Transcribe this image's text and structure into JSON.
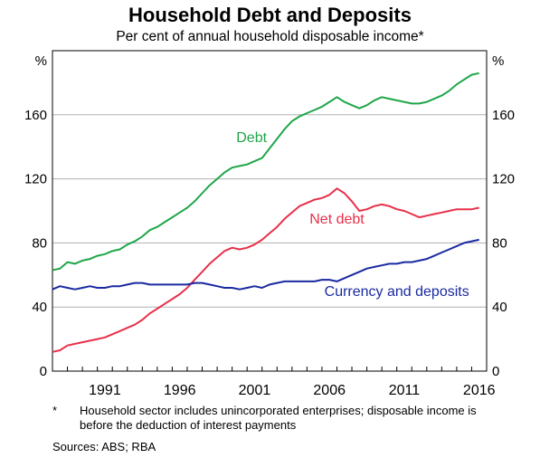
{
  "title": "Household Debt and Deposits",
  "subtitle": "Per cent of annual household disposable income*",
  "footnote_mark": "*",
  "footnote": "Household sector includes unincorporated enterprises; disposable income is before the deduction of interest payments",
  "sources": "Sources:   ABS; RBA",
  "chart_data": {
    "type": "line",
    "title": "Household Debt and Deposits",
    "subtitle": "Per cent of annual household disposable income*",
    "y_unit_left": "%",
    "y_unit_right": "%",
    "ylim": [
      0,
      200
    ],
    "yticks": [
      0,
      40,
      80,
      120,
      160
    ],
    "xlim": [
      1988.0,
      2017.0
    ],
    "xticks": [
      {
        "label": "1991",
        "value": 1991.5
      },
      {
        "label": "1996",
        "value": 1996.5
      },
      {
        "label": "2001",
        "value": 2001.5
      },
      {
        "label": "2006",
        "value": 2006.5
      },
      {
        "label": "2011",
        "value": 2011.5
      },
      {
        "label": "2016",
        "value": 2016.5
      }
    ],
    "grid": "horizontal",
    "series": [
      {
        "name": "Debt",
        "color": "#1fa64a",
        "points": [
          [
            1988.0,
            63
          ],
          [
            1988.5,
            64
          ],
          [
            1989.0,
            68
          ],
          [
            1989.5,
            67
          ],
          [
            1990.0,
            69
          ],
          [
            1990.5,
            70
          ],
          [
            1991.0,
            72
          ],
          [
            1991.5,
            73
          ],
          [
            1992.0,
            75
          ],
          [
            1992.5,
            76
          ],
          [
            1993.0,
            79
          ],
          [
            1993.5,
            81
          ],
          [
            1994.0,
            84
          ],
          [
            1994.5,
            88
          ],
          [
            1995.0,
            90
          ],
          [
            1995.5,
            93
          ],
          [
            1996.0,
            96
          ],
          [
            1996.5,
            99
          ],
          [
            1997.0,
            102
          ],
          [
            1997.5,
            106
          ],
          [
            1998.0,
            111
          ],
          [
            1998.5,
            116
          ],
          [
            1999.0,
            120
          ],
          [
            1999.5,
            124
          ],
          [
            2000.0,
            127
          ],
          [
            2000.5,
            128
          ],
          [
            2001.0,
            129
          ],
          [
            2001.5,
            131
          ],
          [
            2002.0,
            133
          ],
          [
            2002.5,
            139
          ],
          [
            2003.0,
            145
          ],
          [
            2003.5,
            151
          ],
          [
            2004.0,
            156
          ],
          [
            2004.5,
            159
          ],
          [
            2005.0,
            161
          ],
          [
            2005.5,
            163
          ],
          [
            2006.0,
            165
          ],
          [
            2006.5,
            168
          ],
          [
            2007.0,
            171
          ],
          [
            2007.5,
            168
          ],
          [
            2008.0,
            166
          ],
          [
            2008.5,
            164
          ],
          [
            2009.0,
            166
          ],
          [
            2009.5,
            169
          ],
          [
            2010.0,
            171
          ],
          [
            2010.5,
            170
          ],
          [
            2011.0,
            169
          ],
          [
            2011.5,
            168
          ],
          [
            2012.0,
            167
          ],
          [
            2012.5,
            167
          ],
          [
            2013.0,
            168
          ],
          [
            2013.5,
            170
          ],
          [
            2014.0,
            172
          ],
          [
            2014.5,
            175
          ],
          [
            2015.0,
            179
          ],
          [
            2015.5,
            182
          ],
          [
            2016.0,
            185
          ],
          [
            2016.5,
            186
          ]
        ]
      },
      {
        "name": "Net debt",
        "color": "#e8304a",
        "points": [
          [
            1988.0,
            12
          ],
          [
            1988.5,
            13
          ],
          [
            1989.0,
            16
          ],
          [
            1989.5,
            17
          ],
          [
            1990.0,
            18
          ],
          [
            1990.5,
            19
          ],
          [
            1991.0,
            20
          ],
          [
            1991.5,
            21
          ],
          [
            1992.0,
            23
          ],
          [
            1992.5,
            25
          ],
          [
            1993.0,
            27
          ],
          [
            1993.5,
            29
          ],
          [
            1994.0,
            32
          ],
          [
            1994.5,
            36
          ],
          [
            1995.0,
            39
          ],
          [
            1995.5,
            42
          ],
          [
            1996.0,
            45
          ],
          [
            1996.5,
            48
          ],
          [
            1997.0,
            52
          ],
          [
            1997.5,
            57
          ],
          [
            1998.0,
            62
          ],
          [
            1998.5,
            67
          ],
          [
            1999.0,
            71
          ],
          [
            1999.5,
            75
          ],
          [
            2000.0,
            77
          ],
          [
            2000.5,
            76
          ],
          [
            2001.0,
            77
          ],
          [
            2001.5,
            79
          ],
          [
            2002.0,
            82
          ],
          [
            2002.5,
            86
          ],
          [
            2003.0,
            90
          ],
          [
            2003.5,
            95
          ],
          [
            2004.0,
            99
          ],
          [
            2004.5,
            103
          ],
          [
            2005.0,
            105
          ],
          [
            2005.5,
            107
          ],
          [
            2006.0,
            108
          ],
          [
            2006.5,
            110
          ],
          [
            2007.0,
            114
          ],
          [
            2007.5,
            111
          ],
          [
            2008.0,
            106
          ],
          [
            2008.5,
            100
          ],
          [
            2009.0,
            101
          ],
          [
            2009.5,
            103
          ],
          [
            2010.0,
            104
          ],
          [
            2010.5,
            103
          ],
          [
            2011.0,
            101
          ],
          [
            2011.5,
            100
          ],
          [
            2012.0,
            98
          ],
          [
            2012.5,
            96
          ],
          [
            2013.0,
            97
          ],
          [
            2013.5,
            98
          ],
          [
            2014.0,
            99
          ],
          [
            2014.5,
            100
          ],
          [
            2015.0,
            101
          ],
          [
            2015.5,
            101
          ],
          [
            2016.0,
            101
          ],
          [
            2016.5,
            102
          ]
        ]
      },
      {
        "name": "Currency and deposits",
        "color": "#1a2aa0",
        "points": [
          [
            1988.0,
            51
          ],
          [
            1988.5,
            53
          ],
          [
            1989.0,
            52
          ],
          [
            1989.5,
            51
          ],
          [
            1990.0,
            52
          ],
          [
            1990.5,
            53
          ],
          [
            1991.0,
            52
          ],
          [
            1991.5,
            52
          ],
          [
            1992.0,
            53
          ],
          [
            1992.5,
            53
          ],
          [
            1993.0,
            54
          ],
          [
            1993.5,
            55
          ],
          [
            1994.0,
            55
          ],
          [
            1994.5,
            54
          ],
          [
            1995.0,
            54
          ],
          [
            1995.5,
            54
          ],
          [
            1996.0,
            54
          ],
          [
            1996.5,
            54
          ],
          [
            1997.0,
            54
          ],
          [
            1997.5,
            55
          ],
          [
            1998.0,
            55
          ],
          [
            1998.5,
            54
          ],
          [
            1999.0,
            53
          ],
          [
            1999.5,
            52
          ],
          [
            2000.0,
            52
          ],
          [
            2000.5,
            51
          ],
          [
            2001.0,
            52
          ],
          [
            2001.5,
            53
          ],
          [
            2002.0,
            52
          ],
          [
            2002.5,
            54
          ],
          [
            2003.0,
            55
          ],
          [
            2003.5,
            56
          ],
          [
            2004.0,
            56
          ],
          [
            2004.5,
            56
          ],
          [
            2005.0,
            56
          ],
          [
            2005.5,
            56
          ],
          [
            2006.0,
            57
          ],
          [
            2006.5,
            57
          ],
          [
            2007.0,
            56
          ],
          [
            2007.5,
            58
          ],
          [
            2008.0,
            60
          ],
          [
            2008.5,
            62
          ],
          [
            2009.0,
            64
          ],
          [
            2009.5,
            65
          ],
          [
            2010.0,
            66
          ],
          [
            2010.5,
            67
          ],
          [
            2011.0,
            67
          ],
          [
            2011.5,
            68
          ],
          [
            2012.0,
            68
          ],
          [
            2012.5,
            69
          ],
          [
            2013.0,
            70
          ],
          [
            2013.5,
            72
          ],
          [
            2014.0,
            74
          ],
          [
            2014.5,
            76
          ],
          [
            2015.0,
            78
          ],
          [
            2015.5,
            80
          ],
          [
            2016.0,
            81
          ],
          [
            2016.5,
            82
          ]
        ]
      }
    ],
    "annotations": [
      {
        "text": "Debt",
        "series": "Debt",
        "x": 2001.3,
        "y": 143
      },
      {
        "text": "Net debt",
        "series": "Net debt",
        "x": 2007.0,
        "y": 92
      },
      {
        "text": "Currency and deposits",
        "series": "Currency and deposits",
        "x": 2011.0,
        "y": 47
      }
    ]
  }
}
